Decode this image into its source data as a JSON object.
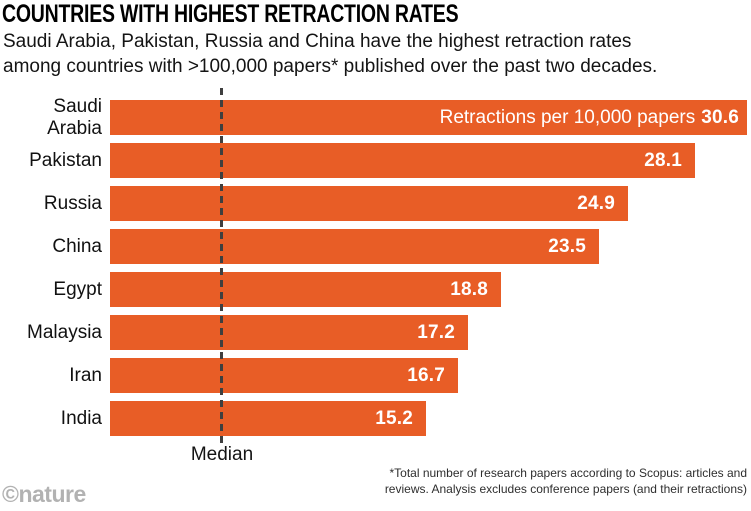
{
  "chart_data": {
    "type": "bar",
    "orientation": "horizontal",
    "title": "COUNTRIES WITH HIGHEST RETRACTION RATES",
    "subtitle_line1": "Saudi Arabia, Pakistan, Russia and China have the highest retraction rates",
    "subtitle_line2": "among countries with >100,000 papers* published over the past two decades.",
    "value_axis_label": "Retractions per 10,000 papers",
    "categories": [
      "Saudi Arabia",
      "Pakistan",
      "Russia",
      "China",
      "Egypt",
      "Malaysia",
      "Iran",
      "India"
    ],
    "values": [
      30.6,
      28.1,
      24.9,
      23.5,
      18.8,
      17.2,
      16.7,
      15.2
    ],
    "xlim": [
      0,
      30.6
    ],
    "grid": false,
    "legend_position": "inside-first-bar",
    "median_annotation": "Median",
    "bar_color": "#e85d26",
    "median_line_color": "#3f3f3f"
  },
  "footnote": {
    "line1": "*Total number of research papers according to Scopus: articles and",
    "line2": "reviews. Analysis excludes conference papers (and their retractions)"
  },
  "branding": {
    "credit": "©nature"
  }
}
